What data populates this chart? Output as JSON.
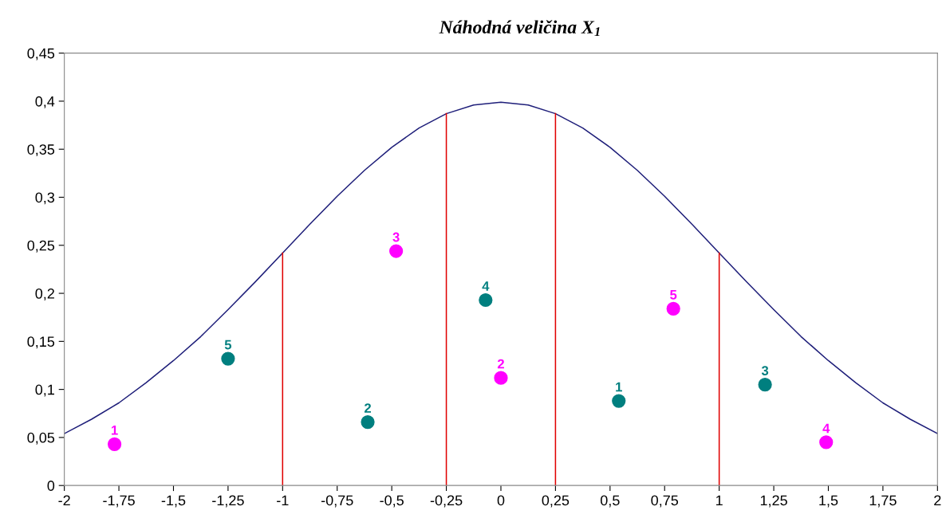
{
  "chart_data": {
    "type": "scatter",
    "title": "Náhodná veličina X$_{1}$",
    "xlim": [
      -2,
      2
    ],
    "ylim": [
      0,
      0.45
    ],
    "xticks": [
      -2,
      {
        "value": -1.75,
        "label": "-1,75"
      },
      {
        "value": -1.5,
        "label": "-1,5"
      },
      {
        "value": -1.25,
        "label": "-1,25"
      },
      -1,
      {
        "value": -0.75,
        "label": "-0,75"
      },
      {
        "value": -0.5,
        "label": "-0,5"
      },
      {
        "value": -0.25,
        "label": "-0,25"
      },
      0,
      {
        "value": 0.25,
        "label": "0,25"
      },
      {
        "value": 0.5,
        "label": "0,5"
      },
      {
        "value": 0.75,
        "label": "0,75"
      },
      1,
      {
        "value": 1.25,
        "label": "1,25"
      },
      {
        "value": 1.5,
        "label": "1,5"
      },
      {
        "value": 1.75,
        "label": "1,75"
      },
      2
    ],
    "yticks": [
      0,
      {
        "value": 0.05,
        "label": "0,05"
      },
      {
        "value": 0.1,
        "label": "0,1"
      },
      {
        "value": 0.15,
        "label": "0,15"
      },
      {
        "value": 0.2,
        "label": "0,2"
      },
      {
        "value": 0.25,
        "label": "0,25"
      },
      {
        "value": 0.3,
        "label": "0,3"
      },
      {
        "value": 0.35,
        "label": "0,35"
      },
      {
        "value": 0.4,
        "label": "0,4"
      },
      {
        "value": 0.45,
        "label": "0,45"
      }
    ],
    "grid": false,
    "marker": "circle",
    "series": [
      {
        "type": "line",
        "color": "#1f1f7a",
        "marker": "none",
        "x": [
          -2,
          -1.875,
          -1.75,
          -1.625,
          -1.5,
          -1.375,
          -1.25,
          -1.125,
          -1,
          -0.875,
          -0.75,
          -0.625,
          -0.5,
          -0.375,
          -0.25,
          -0.125,
          0,
          0.125,
          0.25,
          0.375,
          0.5,
          0.625,
          0.75,
          0.875,
          1,
          1.125,
          1.25,
          1.375,
          1.5,
          1.625,
          1.75,
          1.875,
          2
        ],
        "values": [
          0.054,
          0.069,
          0.086,
          0.107,
          0.13,
          0.155,
          0.183,
          0.212,
          0.242,
          0.272,
          0.301,
          0.328,
          0.352,
          0.372,
          0.387,
          0.396,
          0.399,
          0.396,
          0.387,
          0.372,
          0.352,
          0.328,
          0.301,
          0.272,
          0.242,
          0.212,
          0.183,
          0.155,
          0.13,
          0.107,
          0.086,
          0.069,
          0.054
        ]
      },
      {
        "color": "#ff00ff",
        "x": [
          -1.77,
          0,
          -0.48,
          1.49,
          0.79
        ],
        "values": [
          0.043,
          0.112,
          0.244,
          0.045,
          0.184
        ]
      },
      {
        "color": "#007f7f",
        "x": [
          0.54,
          -0.61,
          1.21,
          -0.07,
          -1.25
        ],
        "values": [
          0.088,
          0.066,
          0.105,
          0.193,
          0.132
        ]
      }
    ],
    "ref_lines": [
      {
        "axis": "x",
        "value": -1,
        "color": "#e00000"
      },
      {
        "axis": "x",
        "value": -0.25,
        "color": "#e00000"
      },
      {
        "axis": "x",
        "value": 0.25,
        "color": "#e00000"
      },
      {
        "axis": "x",
        "value": 1,
        "color": "#e00000"
      }
    ],
    "annotations": [
      {
        "text": "1",
        "x": -1.77,
        "y": 0.043
      },
      {
        "text": "2",
        "x": 0,
        "y": 0.112
      },
      {
        "text": "3",
        "x": -0.48,
        "y": 0.244
      },
      {
        "text": "4",
        "x": 1.49,
        "y": 0.045
      },
      {
        "text": "5",
        "x": 0.79,
        "y": 0.184
      },
      {
        "text": "1",
        "x": 0.54,
        "y": 0.088
      },
      {
        "text": "2",
        "x": -0.61,
        "y": 0.066
      },
      {
        "text": "3",
        "x": 1.21,
        "y": 0.105
      },
      {
        "text": "4",
        "x": -0.07,
        "y": 0.193
      },
      {
        "text": "5",
        "x": -1.25,
        "y": 0.132
      }
    ]
  }
}
